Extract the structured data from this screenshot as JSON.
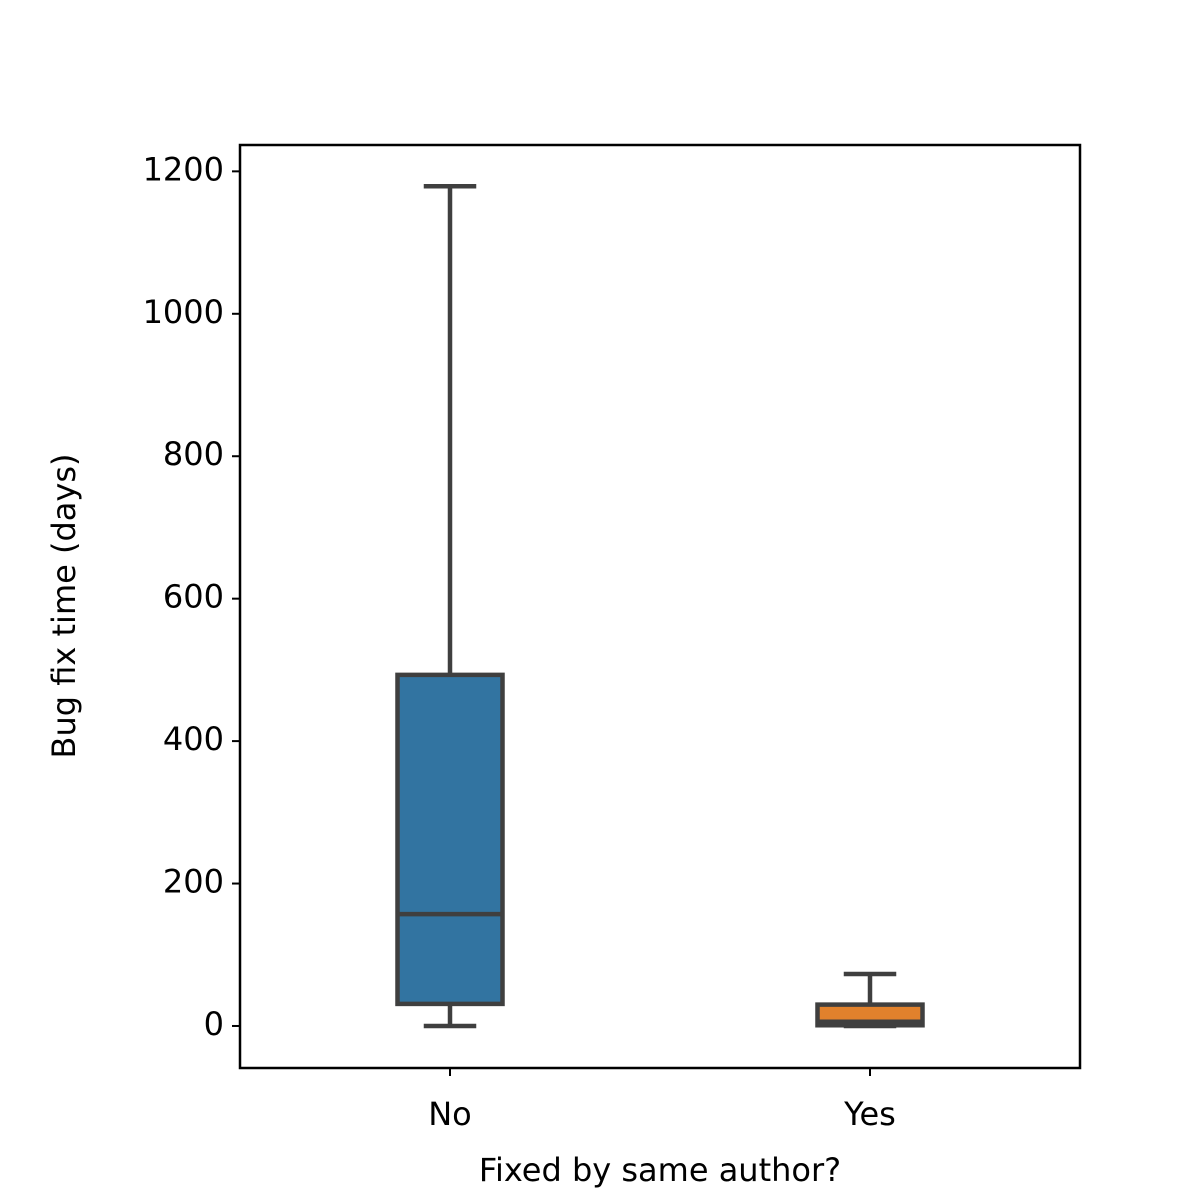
{
  "chart_data": {
    "type": "box",
    "x_label": "Fixed by same author?",
    "y_label": "Bug fix time (days)",
    "categories": [
      "No",
      "Yes"
    ],
    "boxes": [
      {
        "whislo": 0,
        "q1": 31,
        "med": 157,
        "q3": 493,
        "whishi": 1179
      },
      {
        "whislo": 0,
        "q1": 1,
        "med": 6,
        "q3": 30,
        "whishi": 73
      }
    ],
    "colors": [
      "#3274a1",
      "#e1812c"
    ],
    "edge_color": "#3f3f3f",
    "ylim": [
      -59,
      1237
    ],
    "yticks": [
      0,
      200,
      400,
      600,
      800,
      1000,
      1200
    ],
    "grid": false
  }
}
